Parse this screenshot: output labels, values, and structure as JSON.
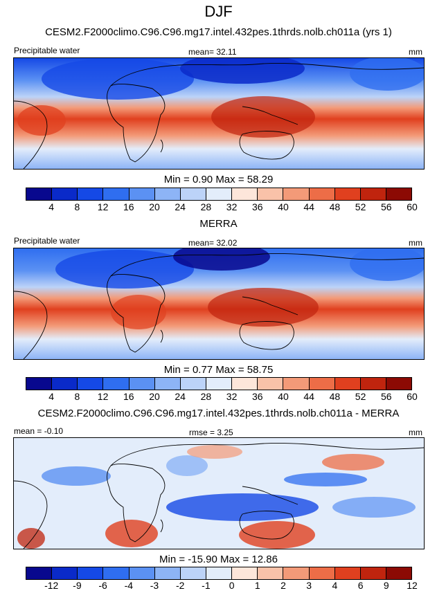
{
  "season": "DJF",
  "panels": [
    {
      "title": "CESM2.F2000climo.C96.C96.mg17.intel.432pes.1thrds.nolb.ch011a (yrs 1)",
      "left_label": "Precipitable water",
      "center_label": "mean=  32.11",
      "right_label": "mm",
      "stats": "Min =   0.90 Max =  58.29",
      "colorbar": {
        "ticks": [
          "4",
          "8",
          "12",
          "16",
          "20",
          "24",
          "28",
          "32",
          "36",
          "40",
          "44",
          "48",
          "52",
          "56",
          "60"
        ],
        "colors": [
          "#08088e",
          "#0a2ac9",
          "#1549e6",
          "#2f6ef0",
          "#5b91f3",
          "#8db4f6",
          "#bcd3f8",
          "#e3edfb",
          "#fde6da",
          "#f9c2a9",
          "#f39a78",
          "#ed6d47",
          "#e0401f",
          "#c0240e",
          "#8c0a04"
        ]
      }
    },
    {
      "title": "MERRA",
      "left_label": "Precipitable water",
      "center_label": "mean=  32.02",
      "right_label": "mm",
      "stats": "Min =   0.77 Max =  58.75",
      "colorbar": {
        "ticks": [
          "4",
          "8",
          "12",
          "16",
          "20",
          "24",
          "28",
          "32",
          "36",
          "40",
          "44",
          "48",
          "52",
          "56",
          "60"
        ],
        "colors": [
          "#08088e",
          "#0a2ac9",
          "#1549e6",
          "#2f6ef0",
          "#5b91f3",
          "#8db4f6",
          "#bcd3f8",
          "#e3edfb",
          "#fde6da",
          "#f9c2a9",
          "#f39a78",
          "#ed6d47",
          "#e0401f",
          "#c0240e",
          "#8c0a04"
        ]
      }
    },
    {
      "title": "CESM2.F2000climo.C96.C96.mg17.intel.432pes.1thrds.nolb.ch011a - MERRA",
      "left_label": "mean =  -0.10",
      "center_label": "rmse =   3.25",
      "right_label": "mm",
      "stats": "Min = -15.90 Max =  12.86",
      "colorbar": {
        "ticks": [
          "-12",
          "-9",
          "-6",
          "-4",
          "-3",
          "-2",
          "-1",
          "0",
          "1",
          "2",
          "3",
          "4",
          "6",
          "9",
          "12"
        ],
        "colors": [
          "#08088e",
          "#0a2ac9",
          "#1549e6",
          "#2f6ef0",
          "#5b91f3",
          "#8db4f6",
          "#bcd3f8",
          "#e3edfb",
          "#fde6da",
          "#f9c2a9",
          "#f39a78",
          "#ed6d47",
          "#e0401f",
          "#c0240e",
          "#8c0a04"
        ]
      }
    }
  ]
}
